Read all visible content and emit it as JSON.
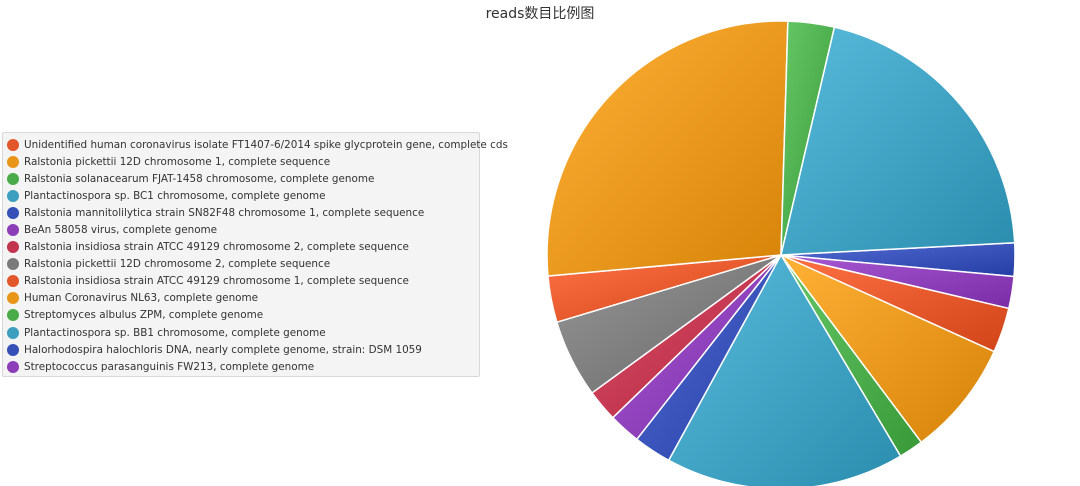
{
  "chart_data": {
    "type": "pie",
    "title": "reads数目比例图",
    "legend_position": "left",
    "categories": [
      "Unidentified human coronavirus isolate FT1407-6/2014 spike glycprotein gene, complete cds",
      "Ralstonia pickettii 12D chromosome 1, complete sequence",
      "Ralstonia solanacearum FJAT-1458 chromosome, complete genome",
      "Plantactinospora sp. BC1 chromosome, complete genome",
      "Ralstonia mannitolilytica strain SN82F48 chromosome 1, complete sequence",
      "BeAn 58058 virus, complete genome",
      "Ralstonia insidiosa strain ATCC 49129 chromosome 2, complete sequence",
      "Ralstonia pickettii 12D chromosome 2, complete sequence",
      "Ralstonia insidiosa strain ATCC 49129 chromosome 1, complete sequence",
      "Human Coronavirus NL63, complete genome",
      "Streptomyces albulus ZPM, complete genome",
      "Plantactinospora sp. BB1 chromosome, complete genome",
      "Halorhodospira halochloris DNA, nearly complete genome, strain: DSM 1059",
      "Streptococcus parasanguinis FW213, complete genome"
    ],
    "colors": [
      "#e3562a",
      "#e8951a",
      "#4aab4a",
      "#3d9fc0",
      "#3650b8",
      "#8c3db8",
      "#c2354e",
      "#7a7a7a",
      "#e3562a",
      "#e8951a",
      "#4aab4a",
      "#3d9fc0",
      "#3650b8",
      "#8c3db8"
    ],
    "slices": [
      {
        "name": "Ralstonia mannitolilytica strain SN82F48 chromosome 1, complete sequence",
        "value": 2.3
      },
      {
        "name": "Streptococcus parasanguinis FW213, complete genome",
        "value": 2.2
      },
      {
        "name": "Unidentified human coronavirus isolate FT1407-6/2014 spike glycprotein gene, complete cds",
        "value": 3.1
      },
      {
        "name": "Ralstonia pickettii 12D chromosome 1, complete sequence",
        "value": 8.0
      },
      {
        "name": "Ralstonia solanacearum FJAT-1458 chromosome, complete genome",
        "value": 1.7
      },
      {
        "name": "Plantactinospora sp. BC1 chromosome, complete genome",
        "value": 16.5
      },
      {
        "name": "Halorhodospira halochloris DNA, nearly complete genome, strain: DSM 1059",
        "value": 2.6
      },
      {
        "name": "BeAn 58058 virus, complete genome",
        "value": 2.2
      },
      {
        "name": "Ralstonia insidiosa strain ATCC 49129 chromosome 2, complete sequence",
        "value": 2.2
      },
      {
        "name": "Ralstonia pickettii 12D chromosome 2, complete sequence",
        "value": 5.4
      },
      {
        "name": "Ralstonia insidiosa strain ATCC 49129 chromosome 1, complete sequence",
        "value": 3.2
      },
      {
        "name": "Human Coronavirus NL63, complete genome",
        "value": 26.9
      },
      {
        "name": "Streptomyces albulus ZPM, complete genome",
        "value": 3.2
      },
      {
        "name": "Plantactinospora sp. BB1 chromosome, complete genome",
        "value": 20.5
      }
    ]
  }
}
